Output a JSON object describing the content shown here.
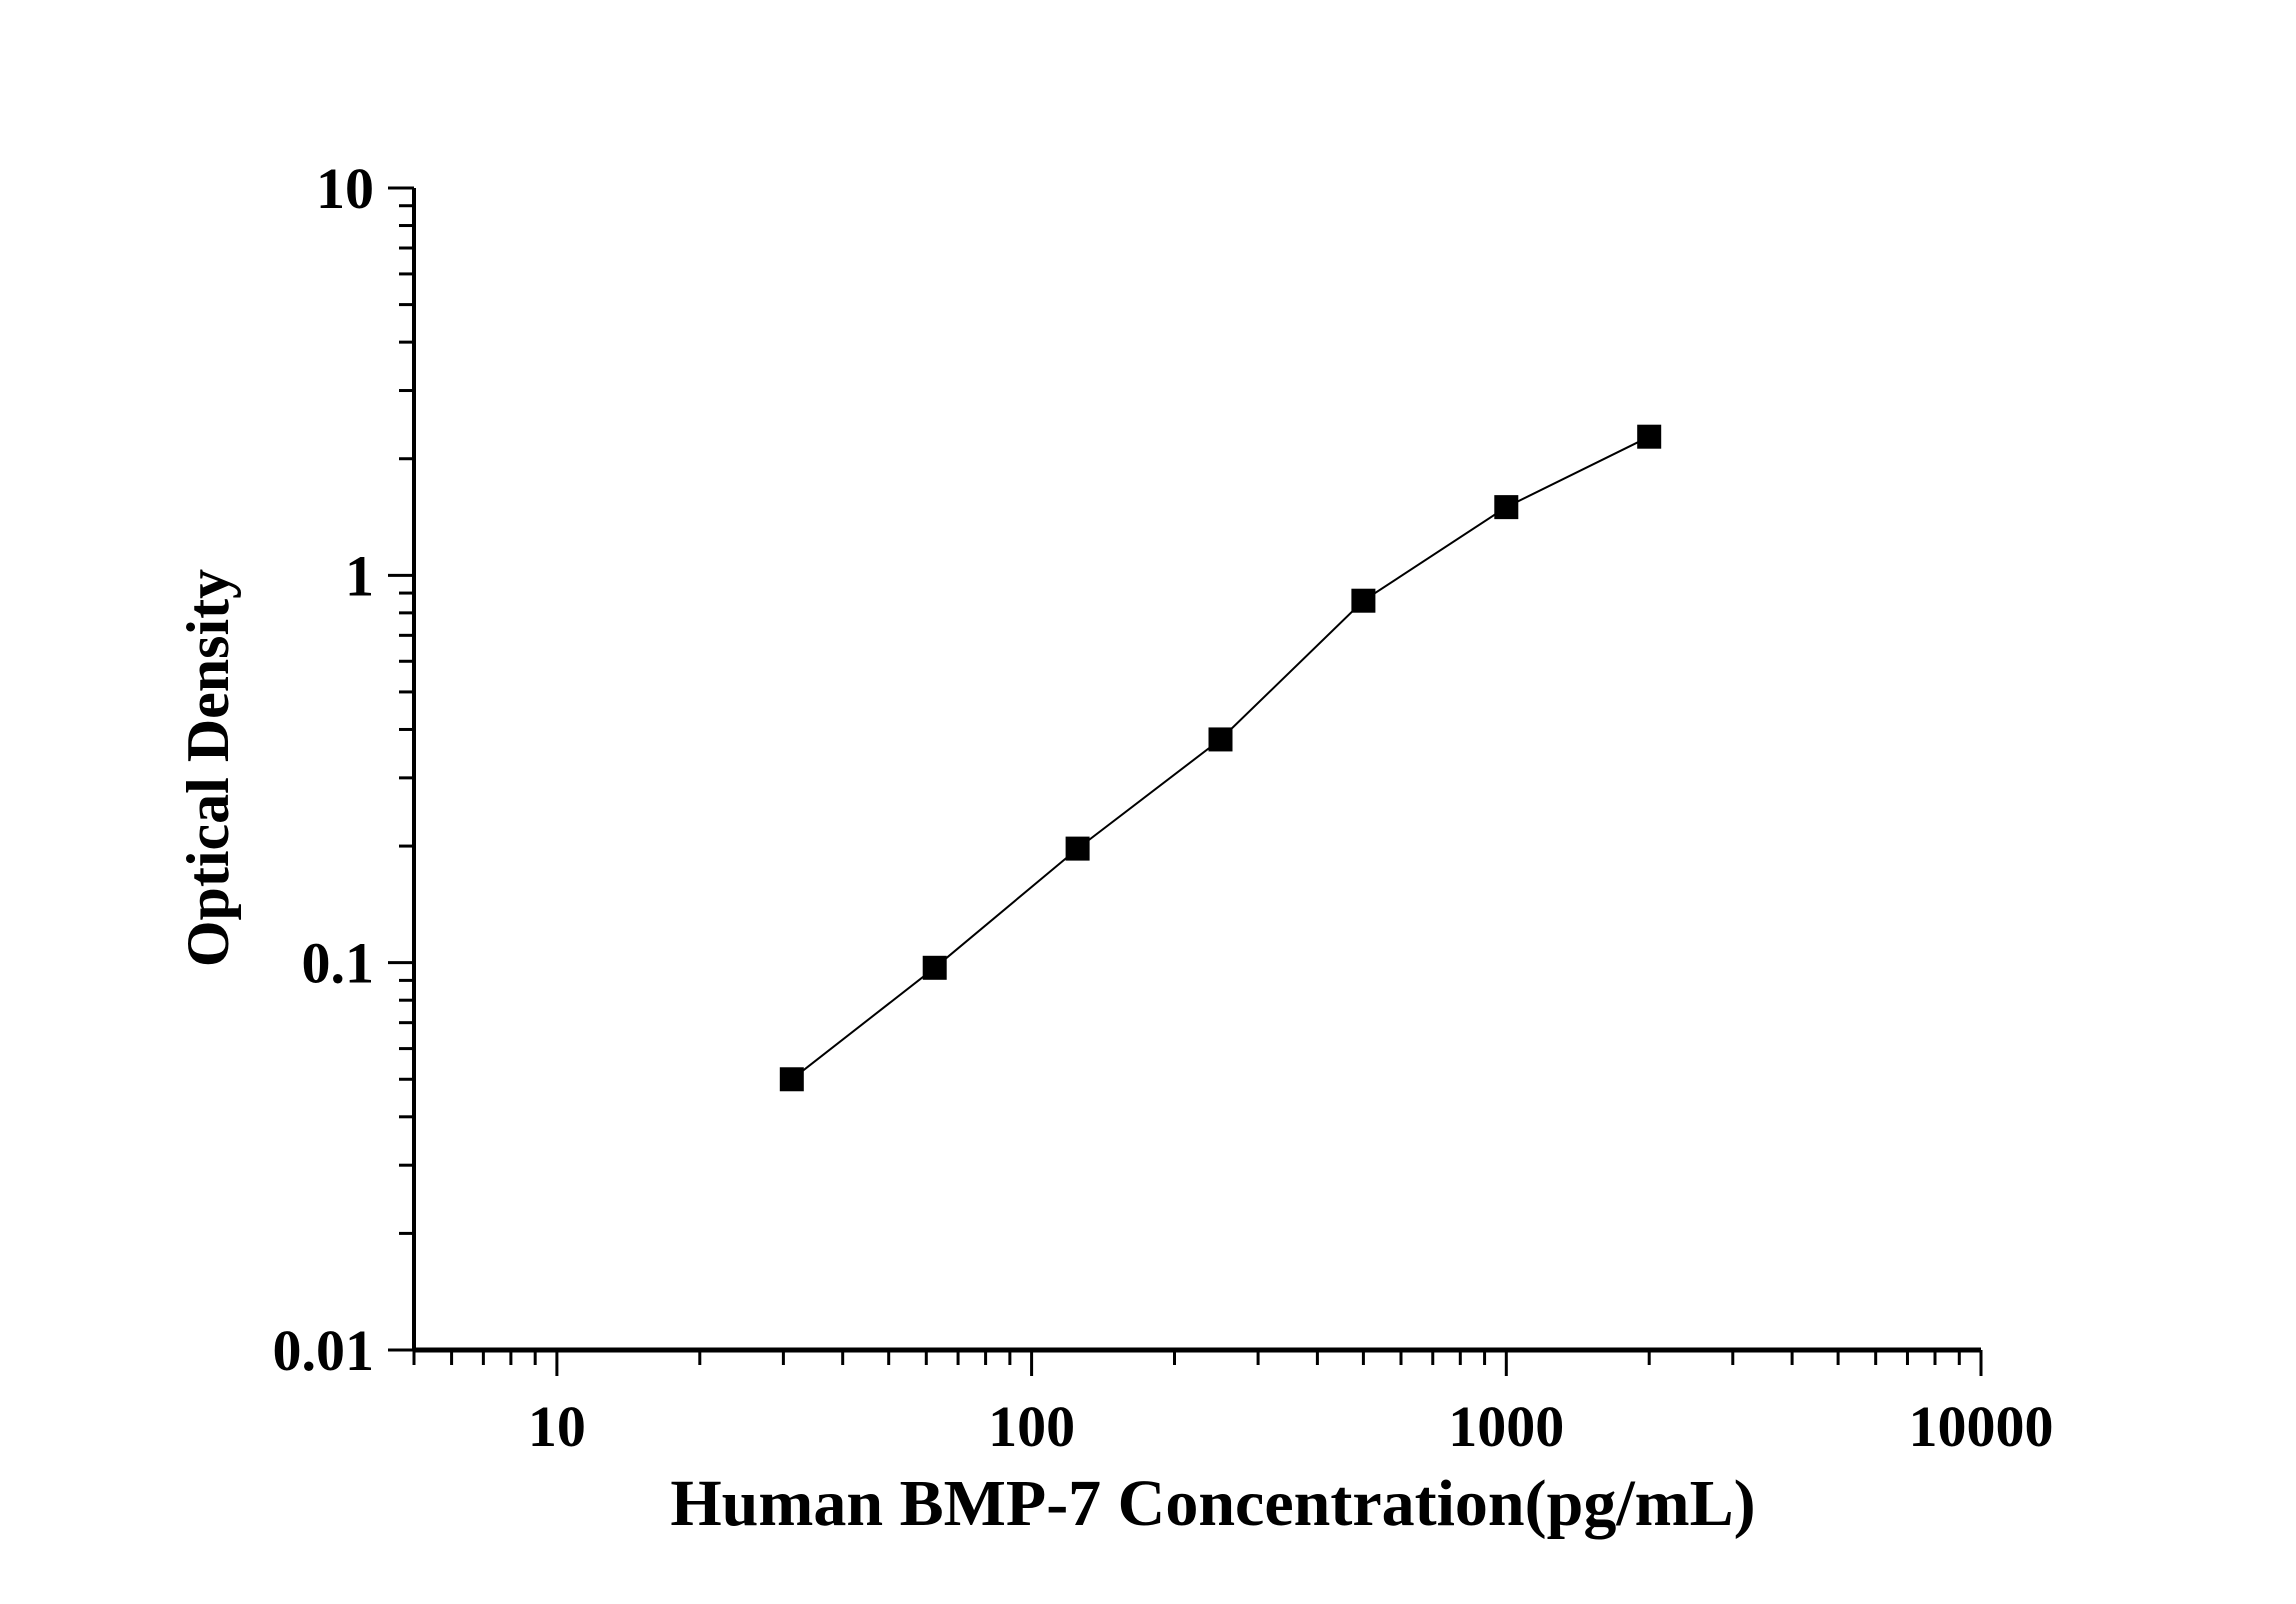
{
  "chart_data": {
    "type": "line",
    "title": "",
    "xlabel": "Human BMP-7 Concentration(pg/mL)",
    "ylabel": "Optical Density",
    "x_scale": "log",
    "y_scale": "log",
    "xlim": [
      5,
      10000
    ],
    "ylim": [
      0.01,
      10
    ],
    "x_ticks": [
      "10",
      "100",
      "1000",
      "10000"
    ],
    "y_ticks": [
      "0.01",
      "0.1",
      "1",
      "10"
    ],
    "grid": false,
    "marker": "square",
    "color": "#000000",
    "series": [
      {
        "x": [
          31.25,
          62.5,
          125,
          250,
          500,
          1000,
          2000
        ],
        "y": [
          0.05,
          0.097,
          0.197,
          0.377,
          0.86,
          1.5,
          2.28
        ]
      }
    ]
  }
}
